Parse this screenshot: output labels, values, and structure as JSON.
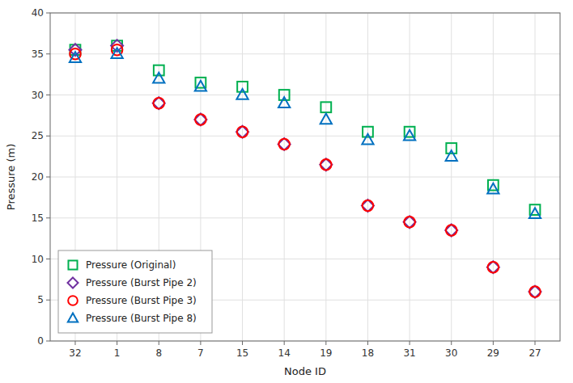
{
  "chart_data": {
    "type": "scatter",
    "xlabel": "Node ID",
    "ylabel": "Pressure (m)",
    "categories": [
      "32",
      "1",
      "8",
      "7",
      "15",
      "14",
      "19",
      "18",
      "31",
      "30",
      "29",
      "27"
    ],
    "series": [
      {
        "name": "Pressure (Original)",
        "color": "#00b050",
        "marker": "square",
        "values": [
          35.5,
          36.0,
          33.0,
          31.5,
          31.0,
          30.0,
          28.5,
          25.5,
          25.5,
          23.5,
          19.0,
          16.0
        ]
      },
      {
        "name": "Pressure (Burst Pipe 2)",
        "color": "#7030a0",
        "marker": "diamond",
        "values": [
          35.5,
          36.0,
          29.0,
          27.0,
          25.5,
          24.0,
          21.5,
          16.5,
          14.5,
          13.5,
          9.0,
          6.0
        ]
      },
      {
        "name": "Pressure (Burst Pipe 3)",
        "color": "#ff0000",
        "marker": "circle",
        "values": [
          35.0,
          35.5,
          29.0,
          27.0,
          25.5,
          24.0,
          21.5,
          16.5,
          14.5,
          13.5,
          9.0,
          6.0
        ]
      },
      {
        "name": "Pressure (Burst Pipe 8)",
        "color": "#0070c0",
        "marker": "triangle",
        "values": [
          34.5,
          35.0,
          32.0,
          31.0,
          30.0,
          29.0,
          27.0,
          24.5,
          25.0,
          22.5,
          18.5,
          15.5
        ]
      }
    ],
    "ylim": [
      0,
      40
    ],
    "yticks": [
      0,
      5,
      10,
      15,
      20,
      25,
      30,
      35,
      40
    ],
    "grid": true,
    "legend": "lower left"
  }
}
